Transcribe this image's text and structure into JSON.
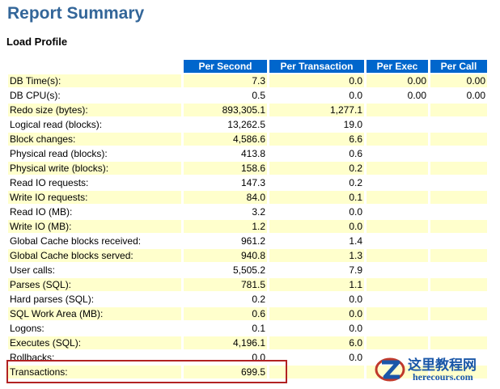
{
  "page": {
    "title": "Report Summary",
    "section": "Load Profile"
  },
  "table": {
    "columns": [
      "",
      "Per Second",
      "Per Transaction",
      "Per Exec",
      "Per Call"
    ],
    "rows": [
      [
        "DB Time(s):",
        "7.3",
        "0.0",
        "0.00",
        "0.00"
      ],
      [
        "DB CPU(s):",
        "0.5",
        "0.0",
        "0.00",
        "0.00"
      ],
      [
        "Redo size (bytes):",
        "893,305.1",
        "1,277.1",
        "",
        ""
      ],
      [
        "Logical read (blocks):",
        "13,262.5",
        "19.0",
        "",
        ""
      ],
      [
        "Block changes:",
        "4,586.6",
        "6.6",
        "",
        ""
      ],
      [
        "Physical read (blocks):",
        "413.8",
        "0.6",
        "",
        ""
      ],
      [
        "Physical write (blocks):",
        "158.6",
        "0.2",
        "",
        ""
      ],
      [
        "Read IO requests:",
        "147.3",
        "0.2",
        "",
        ""
      ],
      [
        "Write IO requests:",
        "84.0",
        "0.1",
        "",
        ""
      ],
      [
        "Read IO (MB):",
        "3.2",
        "0.0",
        "",
        ""
      ],
      [
        "Write IO (MB):",
        "1.2",
        "0.0",
        "",
        ""
      ],
      [
        "Global Cache blocks received:",
        "961.2",
        "1.4",
        "",
        ""
      ],
      [
        "Global Cache blocks served:",
        "940.8",
        "1.3",
        "",
        ""
      ],
      [
        "User calls:",
        "5,505.2",
        "7.9",
        "",
        ""
      ],
      [
        "Parses (SQL):",
        "781.5",
        "1.1",
        "",
        ""
      ],
      [
        "Hard parses (SQL):",
        "0.2",
        "0.0",
        "",
        ""
      ],
      [
        "SQL Work Area (MB):",
        "0.6",
        "0.0",
        "",
        ""
      ],
      [
        "Logons:",
        "0.1",
        "0.0",
        "",
        ""
      ],
      [
        "Executes (SQL):",
        "4,196.1",
        "6.0",
        "",
        ""
      ],
      [
        "Rollbacks:",
        "0.0",
        "0.0",
        "",
        ""
      ],
      [
        "Transactions:",
        "699.5",
        "",
        "",
        ""
      ]
    ]
  },
  "watermark": {
    "cn": "这里教程网",
    "en": "herecours.com"
  },
  "colors": {
    "title": "#336699",
    "header_bg": "#0066cc",
    "row_alt": "#ffffcc",
    "highlight": "#b22222",
    "watermark": "#1a57a8"
  }
}
